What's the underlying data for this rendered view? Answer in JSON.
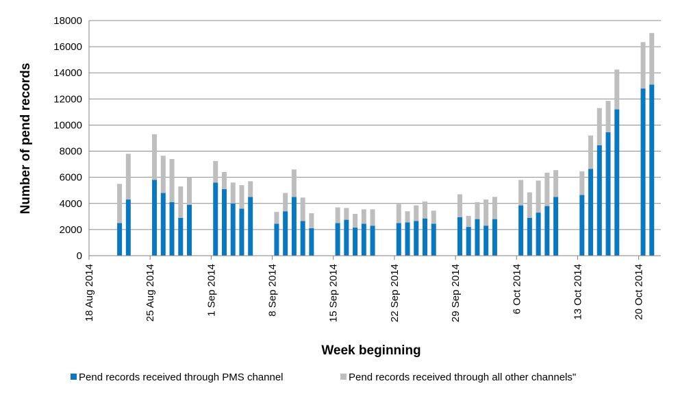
{
  "chart_data": {
    "type": "bar",
    "stacked": true,
    "xlabel": "Week beginning",
    "ylabel": "Number of pend records",
    "ylim": [
      0,
      18000
    ],
    "yticks": [
      0,
      2000,
      4000,
      6000,
      8000,
      10000,
      12000,
      14000,
      16000,
      18000
    ],
    "grid": true,
    "legend_position": "bottom",
    "week_labels": [
      "18 Aug 2014",
      "25 Aug 2014",
      "1 Sep 2014",
      "8 Sep 2014",
      "15 Sep 2014",
      "22 Sep 2014",
      "29 Sep 2014",
      "6 Oct 2014",
      "13 Oct 2014",
      "20 Oct 2014"
    ],
    "days": [
      "2014-08-21",
      "2014-08-22",
      "2014-08-25",
      "2014-08-26",
      "2014-08-27",
      "2014-08-28",
      "2014-08-29",
      "2014-09-01",
      "2014-09-02",
      "2014-09-03",
      "2014-09-04",
      "2014-09-05",
      "2014-09-08",
      "2014-09-09",
      "2014-09-10",
      "2014-09-11",
      "2014-09-12",
      "2014-09-15",
      "2014-09-16",
      "2014-09-17",
      "2014-09-18",
      "2014-09-19",
      "2014-09-22",
      "2014-09-23",
      "2014-09-24",
      "2014-09-25",
      "2014-09-26",
      "2014-09-29",
      "2014-09-30",
      "2014-10-01",
      "2014-10-02",
      "2014-10-03",
      "2014-10-06",
      "2014-10-07",
      "2014-10-08",
      "2014-10-09",
      "2014-10-10",
      "2014-10-13",
      "2014-10-14",
      "2014-10-15",
      "2014-10-16",
      "2014-10-17",
      "2014-10-20",
      "2014-10-21"
    ],
    "series": [
      {
        "name": "Pend records received through PMS channel",
        "color": "#0a78c0",
        "values": [
          2500,
          4300,
          5800,
          4800,
          4100,
          2900,
          3900,
          5600,
          5100,
          4000,
          3600,
          4500,
          2450,
          3400,
          4500,
          2650,
          2100,
          2500,
          2750,
          2150,
          2450,
          2300,
          2500,
          2550,
          2650,
          2850,
          2450,
          2950,
          2200,
          2800,
          2300,
          2800,
          3850,
          2900,
          3300,
          3800,
          4500,
          4650,
          6650,
          8450,
          9450,
          11200,
          12800,
          13100
        ]
      },
      {
        "name": "Pend records received through all other channels\"",
        "color": "#bebebe",
        "values": [
          3000,
          3500,
          3500,
          2850,
          3300,
          2400,
          2100,
          1650,
          1300,
          1600,
          1800,
          1200,
          900,
          1400,
          2100,
          1800,
          1150,
          1200,
          900,
          1050,
          1100,
          1250,
          1450,
          850,
          1200,
          1300,
          1000,
          1750,
          850,
          1300,
          2000,
          1700,
          1950,
          1950,
          2450,
          2550,
          2050,
          1800,
          2550,
          2850,
          2400,
          3050,
          3550,
          3950
        ]
      }
    ]
  }
}
